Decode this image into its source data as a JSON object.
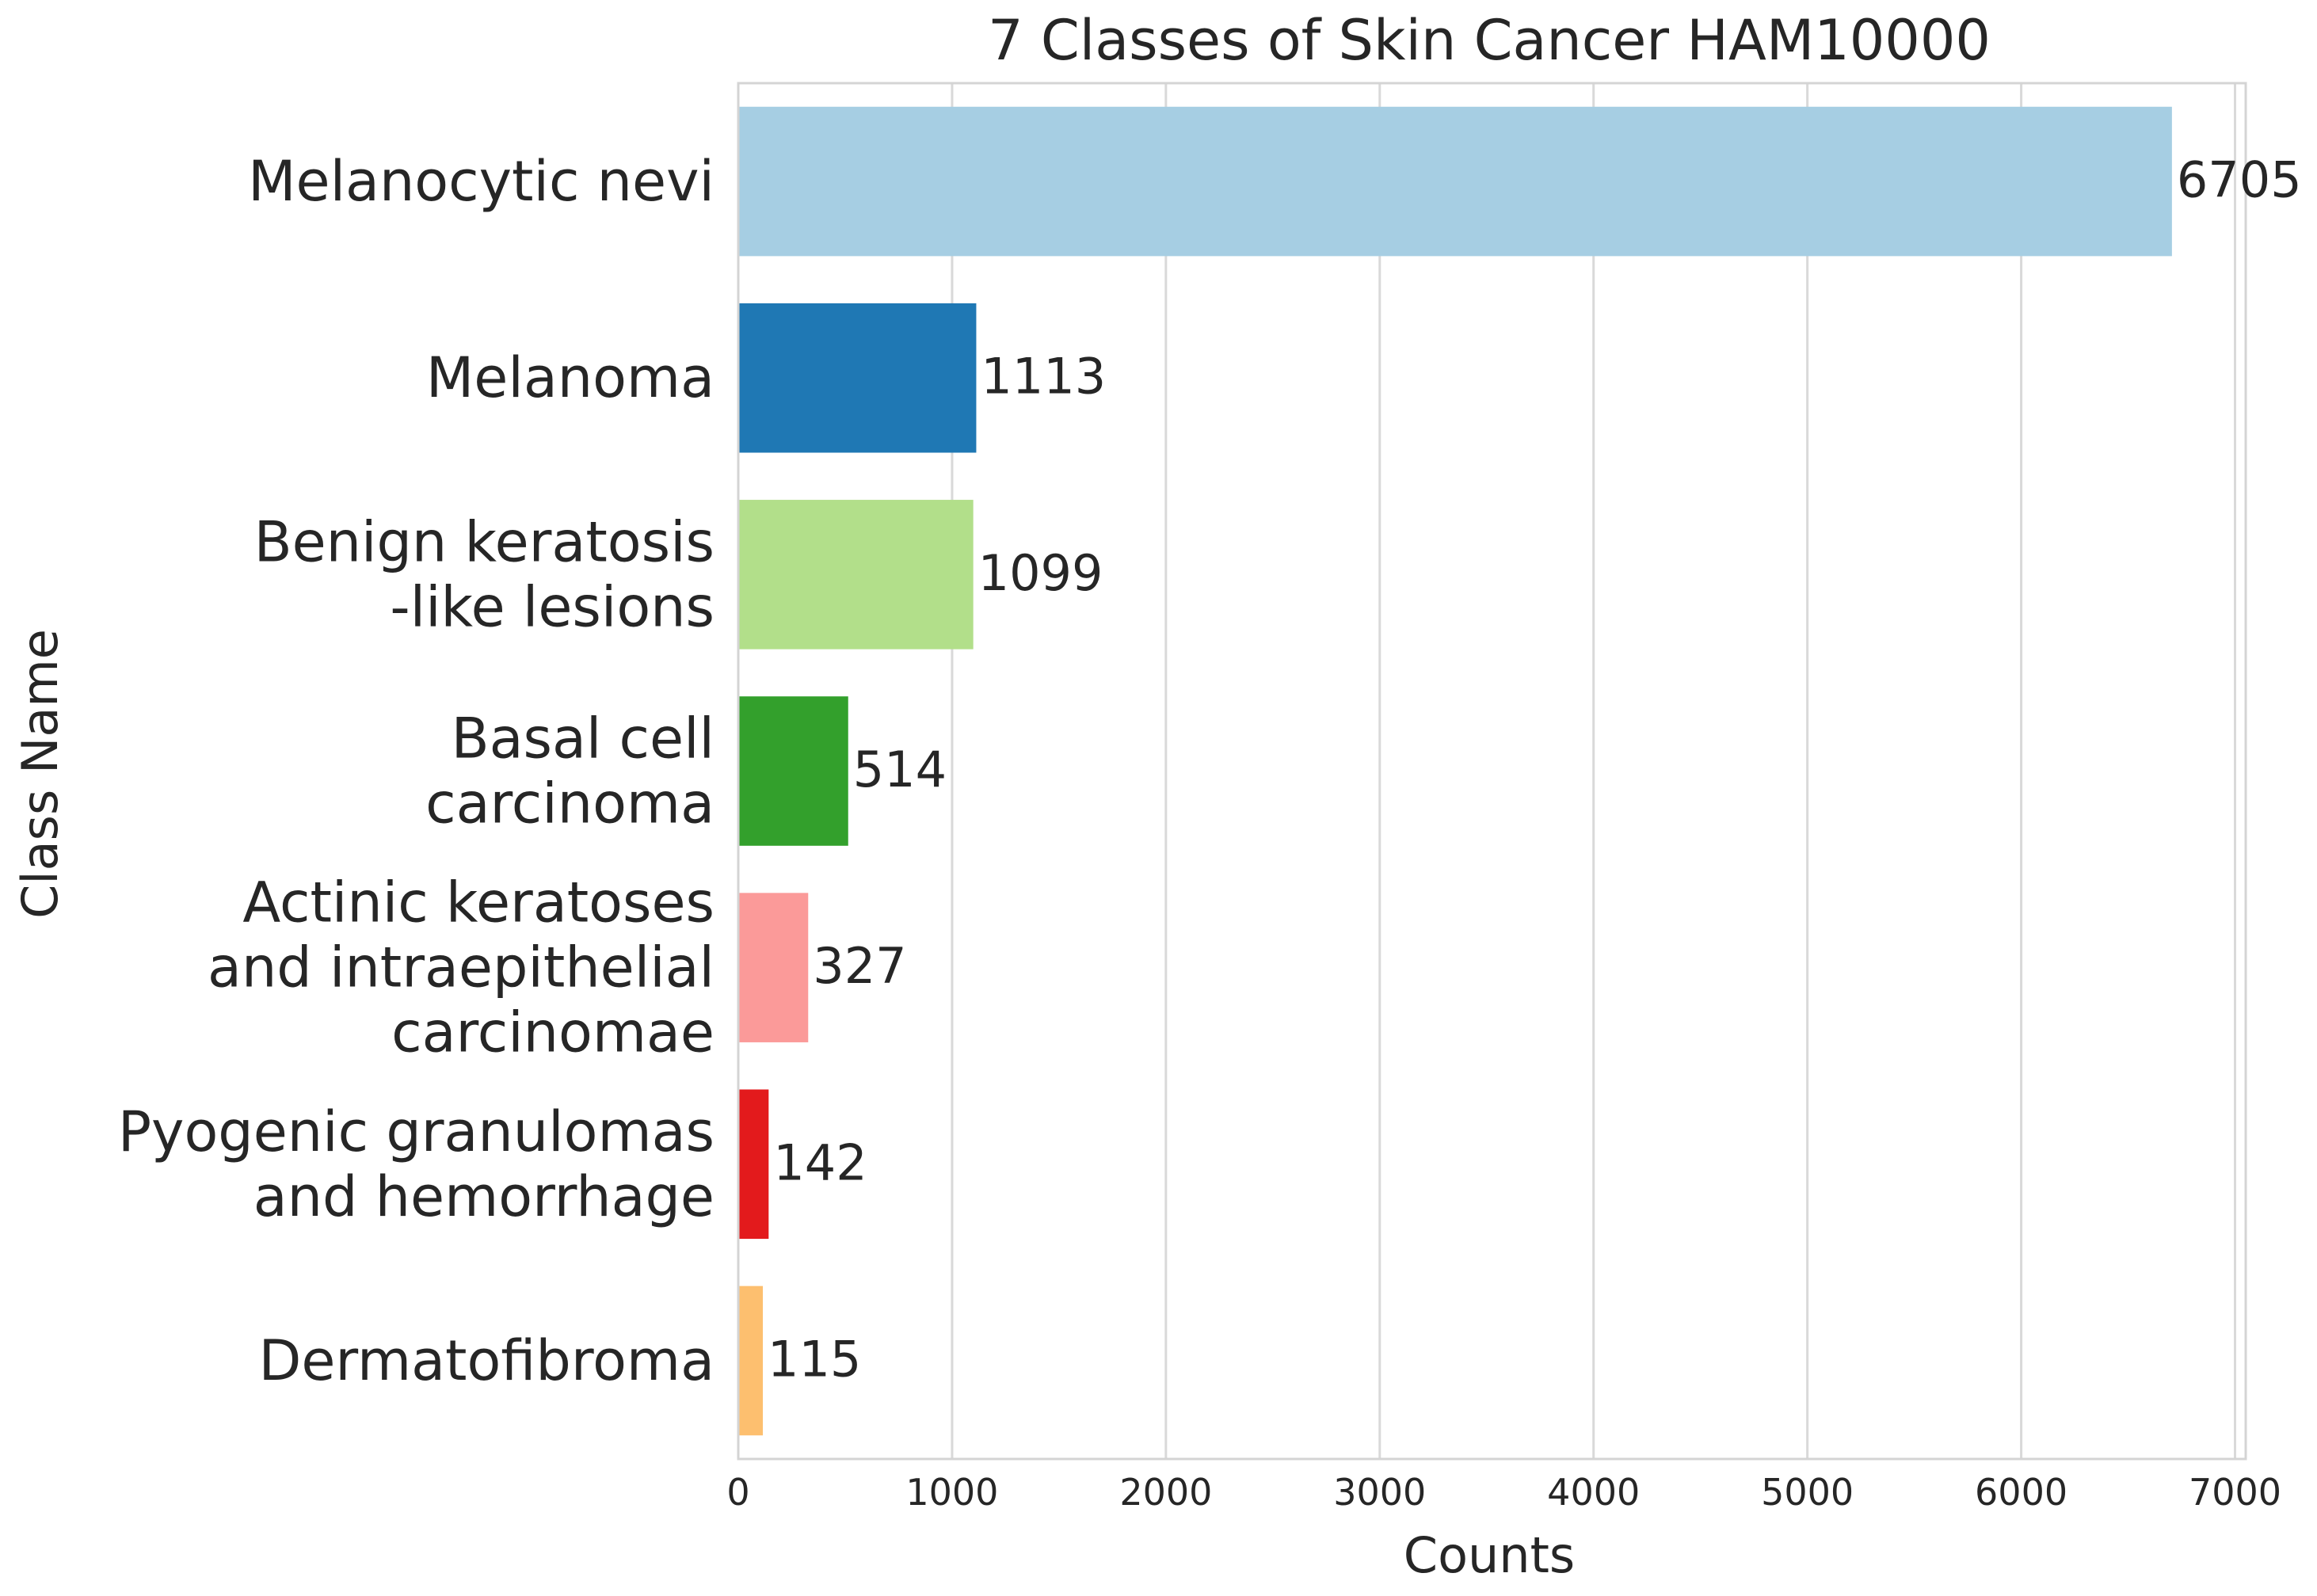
{
  "chart_data": {
    "type": "bar",
    "orientation": "horizontal",
    "title": "7 Classes of Skin Cancer HAM10000",
    "xlabel": "Counts",
    "ylabel": "Class Name",
    "categories": [
      "Melanocytic nevi",
      "Melanoma",
      "Benign keratosis -like lesions",
      "Basal cell carcinoma",
      "Actinic keratoses and intraepithelial carcinomae",
      "Pyogenic granulomas and hemorrhage",
      "Dermatofibroma"
    ],
    "category_lines": [
      [
        "Melanocytic nevi"
      ],
      [
        "Melanoma"
      ],
      [
        "Benign keratosis",
        "-like lesions"
      ],
      [
        "Basal cell",
        "carcinoma"
      ],
      [
        "Actinic keratoses",
        "and intraepithelial",
        "carcinomae"
      ],
      [
        "Pyogenic granulomas",
        "and hemorrhage"
      ],
      [
        "Dermatofibroma"
      ]
    ],
    "values": [
      6705,
      1113,
      1099,
      514,
      327,
      142,
      115
    ],
    "data_labels": [
      "6705",
      "1113",
      "1099",
      "514",
      "327",
      "142",
      "115"
    ],
    "colors": [
      "#a6cee3",
      "#1f78b4",
      "#b2df8a",
      "#33a02c",
      "#fb9a99",
      "#e31a1c",
      "#fdbf6f"
    ],
    "xlim": [
      0,
      7050
    ],
    "xticks": [
      0,
      1000,
      2000,
      3000,
      4000,
      5000,
      6000,
      7000
    ],
    "xtick_labels": [
      "0",
      "1000",
      "2000",
      "3000",
      "4000",
      "5000",
      "6000",
      "7000"
    ],
    "grid": "vertical",
    "legend": "none"
  },
  "colors": {
    "text": "#262626",
    "grid": "#d9d9d9",
    "frame": "#d4d4d4",
    "background": "#ffffff"
  }
}
